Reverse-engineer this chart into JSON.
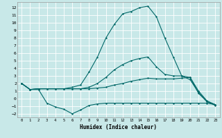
{
  "xlabel": "Humidex (Indice chaleur)",
  "ylabel": "",
  "xlim": [
    -0.5,
    23.5
  ],
  "ylim": [
    -2.5,
    12.7
  ],
  "yticks": [
    -2,
    -1,
    0,
    1,
    2,
    3,
    4,
    5,
    6,
    7,
    8,
    9,
    10,
    11,
    12
  ],
  "xticks": [
    0,
    1,
    2,
    3,
    4,
    5,
    6,
    7,
    8,
    9,
    10,
    11,
    12,
    13,
    14,
    15,
    16,
    17,
    18,
    19,
    20,
    21,
    22,
    23
  ],
  "background_color": "#c8e8e8",
  "grid_color": "#aed4d4",
  "line_color": "#006868",
  "line1_x": [
    0,
    1,
    2,
    3,
    4,
    5,
    6,
    7,
    8,
    9,
    10,
    11,
    12,
    13,
    14,
    15,
    16,
    17,
    18,
    19,
    20,
    21,
    22,
    23
  ],
  "line1_y": [
    2.0,
    1.2,
    1.2,
    -0.6,
    -1.1,
    -1.4,
    -2.0,
    -1.5,
    -0.9,
    -0.7,
    -0.6,
    -0.6,
    -0.6,
    -0.6,
    -0.6,
    -0.6,
    -0.6,
    -0.6,
    -0.6,
    -0.6,
    -0.6,
    -0.6,
    -0.6,
    -0.8
  ],
  "line2_x": [
    0,
    1,
    2,
    3,
    4,
    5,
    6,
    7,
    8,
    9,
    10,
    11,
    12,
    13,
    14,
    15,
    16,
    17,
    18,
    19,
    20,
    21,
    22,
    23
  ],
  "line2_y": [
    2.0,
    1.2,
    1.3,
    1.3,
    1.3,
    1.3,
    1.3,
    1.3,
    1.3,
    1.4,
    1.5,
    1.8,
    2.0,
    2.3,
    2.5,
    2.7,
    2.6,
    2.6,
    2.6,
    2.7,
    2.8,
    0.7,
    -0.4,
    -0.8
  ],
  "line3_x": [
    0,
    1,
    2,
    3,
    4,
    5,
    6,
    7,
    8,
    9,
    10,
    11,
    12,
    13,
    14,
    15,
    16,
    17,
    18,
    19,
    20,
    21,
    22,
    23
  ],
  "line3_y": [
    2.0,
    1.2,
    1.3,
    1.3,
    1.3,
    1.3,
    1.3,
    1.3,
    1.5,
    2.0,
    2.8,
    3.8,
    4.5,
    5.0,
    5.3,
    5.5,
    4.2,
    3.2,
    3.0,
    3.0,
    2.8,
    1.0,
    -0.3,
    -0.8
  ],
  "line4_x": [
    0,
    1,
    2,
    3,
    4,
    5,
    6,
    7,
    8,
    9,
    10,
    11,
    12,
    13,
    14,
    15,
    16,
    17,
    18,
    19,
    20,
    21,
    22,
    23
  ],
  "line4_y": [
    2.0,
    1.2,
    1.3,
    1.3,
    1.3,
    1.3,
    1.5,
    1.8,
    3.5,
    5.5,
    8.0,
    9.8,
    11.2,
    11.5,
    12.0,
    12.2,
    10.8,
    8.0,
    5.5,
    3.0,
    2.5,
    0.8,
    -0.4,
    -0.9
  ]
}
